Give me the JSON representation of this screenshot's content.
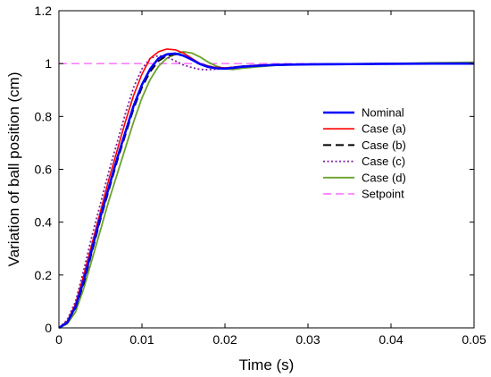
{
  "chart_data": {
    "type": "line",
    "xlabel": "Time (s)",
    "ylabel": "Variation of ball position (cm)",
    "xlim": [
      0,
      0.05
    ],
    "ylim": [
      0,
      1.2
    ],
    "xticks": [
      0,
      0.01,
      0.02,
      0.03,
      0.04,
      0.05
    ],
    "xtick_labels": [
      "0",
      "0.01",
      "0.02",
      "0.03",
      "0.04",
      "0.05"
    ],
    "yticks": [
      0,
      0.2,
      0.4,
      0.6,
      0.8,
      1.0,
      1.2
    ],
    "ytick_labels": [
      "0",
      "0.2",
      "0.4",
      "0.6",
      "0.8",
      "1",
      "1.2"
    ],
    "grid": false,
    "legend_position": "right-upper",
    "series": [
      {
        "name": "Nominal",
        "color": "#0000ff",
        "style": "solid",
        "width": 2.6,
        "x": [
          0,
          0.001,
          0.002,
          0.003,
          0.004,
          0.005,
          0.006,
          0.007,
          0.008,
          0.009,
          0.01,
          0.011,
          0.012,
          0.013,
          0.014,
          0.015,
          0.016,
          0.017,
          0.018,
          0.019,
          0.02,
          0.021,
          0.022,
          0.024,
          0.026,
          0.028,
          0.03,
          0.035,
          0.04,
          0.045,
          0.05
        ],
        "y": [
          0,
          0.02,
          0.08,
          0.18,
          0.3,
          0.42,
          0.53,
          0.64,
          0.74,
          0.84,
          0.92,
          0.98,
          1.02,
          1.035,
          1.038,
          1.03,
          1.015,
          0.998,
          0.987,
          0.982,
          0.981,
          0.984,
          0.988,
          0.992,
          0.995,
          0.996,
          0.997,
          0.998,
          0.999,
          1.0,
          1.0
        ]
      },
      {
        "name": "Case (a)",
        "color": "#ff0000",
        "style": "solid",
        "width": 1.6,
        "x": [
          0,
          0.001,
          0.002,
          0.003,
          0.004,
          0.005,
          0.006,
          0.007,
          0.008,
          0.009,
          0.01,
          0.011,
          0.012,
          0.013,
          0.014,
          0.015,
          0.016,
          0.017,
          0.018,
          0.019,
          0.02,
          0.021,
          0.022,
          0.024,
          0.026,
          0.028,
          0.03,
          0.035,
          0.04,
          0.045,
          0.05
        ],
        "y": [
          0,
          0.025,
          0.09,
          0.2,
          0.32,
          0.44,
          0.56,
          0.67,
          0.78,
          0.88,
          0.96,
          1.02,
          1.045,
          1.055,
          1.052,
          1.04,
          1.02,
          1.0,
          0.99,
          0.985,
          0.984,
          0.986,
          0.99,
          0.994,
          0.996,
          0.997,
          0.998,
          0.999,
          1.0,
          1.0,
          1.0
        ]
      },
      {
        "name": "Case (b)",
        "color": "#000000",
        "style": "dashed",
        "width": 2.0,
        "x": [
          0,
          0.001,
          0.002,
          0.003,
          0.004,
          0.005,
          0.006,
          0.007,
          0.008,
          0.009,
          0.01,
          0.011,
          0.012,
          0.013,
          0.014,
          0.015,
          0.016,
          0.017,
          0.018,
          0.019,
          0.02,
          0.021,
          0.022,
          0.024,
          0.026,
          0.028,
          0.03,
          0.035,
          0.04,
          0.045,
          0.05
        ],
        "y": [
          0,
          0.02,
          0.075,
          0.17,
          0.29,
          0.41,
          0.52,
          0.63,
          0.73,
          0.83,
          0.91,
          0.97,
          1.01,
          1.03,
          1.035,
          1.03,
          1.015,
          1.0,
          0.99,
          0.985,
          0.983,
          0.985,
          0.988,
          0.992,
          0.995,
          0.996,
          0.997,
          0.998,
          0.999,
          1.0,
          1.0
        ]
      },
      {
        "name": "Case (c)",
        "color": "#7b1fa2",
        "style": "dotted",
        "width": 1.8,
        "x": [
          0,
          0.001,
          0.002,
          0.003,
          0.004,
          0.005,
          0.006,
          0.007,
          0.008,
          0.009,
          0.01,
          0.011,
          0.012,
          0.013,
          0.014,
          0.015,
          0.016,
          0.017,
          0.018,
          0.019,
          0.02,
          0.021,
          0.022,
          0.024,
          0.026,
          0.028,
          0.03,
          0.035,
          0.04,
          0.045,
          0.05
        ],
        "y": [
          0,
          0.03,
          0.1,
          0.22,
          0.35,
          0.47,
          0.59,
          0.7,
          0.81,
          0.91,
          0.98,
          1.02,
          1.03,
          1.025,
          1.01,
          0.995,
          0.985,
          0.978,
          0.977,
          0.979,
          0.983,
          0.987,
          0.99,
          0.994,
          0.996,
          0.997,
          0.998,
          0.999,
          1.0,
          1.0,
          1.0
        ]
      },
      {
        "name": "Case (d)",
        "color": "#6aa32a",
        "style": "solid",
        "width": 1.8,
        "x": [
          0,
          0.001,
          0.002,
          0.003,
          0.004,
          0.005,
          0.006,
          0.007,
          0.008,
          0.009,
          0.01,
          0.011,
          0.012,
          0.013,
          0.014,
          0.015,
          0.016,
          0.017,
          0.018,
          0.019,
          0.02,
          0.021,
          0.022,
          0.024,
          0.026,
          0.028,
          0.03,
          0.035,
          0.04,
          0.045,
          0.05
        ],
        "y": [
          0,
          0.015,
          0.06,
          0.15,
          0.26,
          0.37,
          0.48,
          0.58,
          0.68,
          0.78,
          0.87,
          0.94,
          0.99,
          1.02,
          1.035,
          1.045,
          1.04,
          1.025,
          1.005,
          0.99,
          0.98,
          0.978,
          0.982,
          0.988,
          0.993,
          0.995,
          0.997,
          0.999,
          1.0,
          1.003,
          1.005
        ]
      },
      {
        "name": "Setpoint",
        "color": "#ff66ff",
        "style": "dashed",
        "width": 1.4,
        "x": [
          0,
          0.05
        ],
        "y": [
          1.0,
          1.0
        ]
      }
    ]
  }
}
